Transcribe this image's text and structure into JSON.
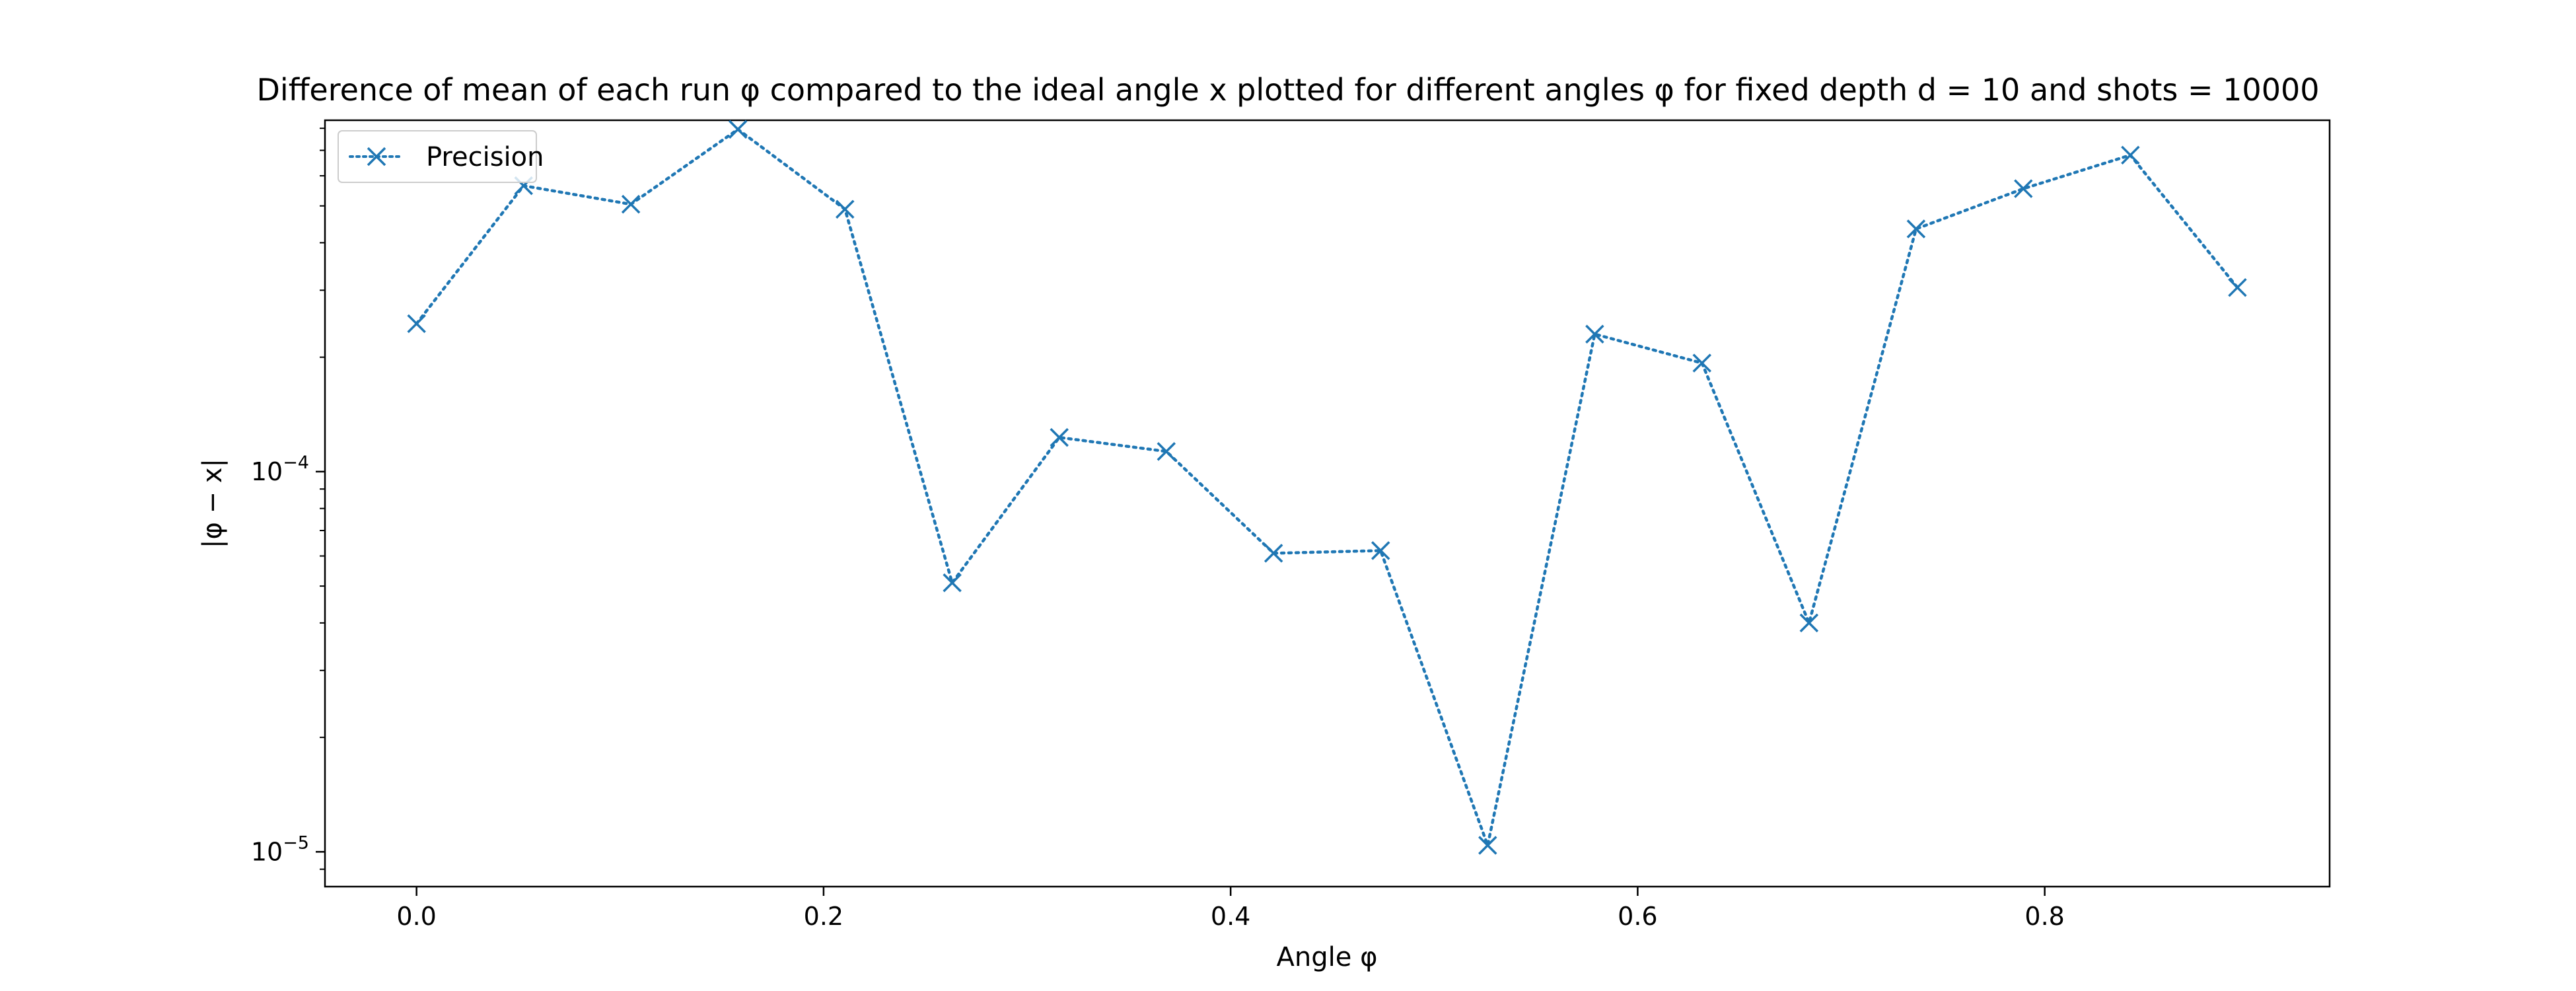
{
  "chart_data": {
    "type": "line",
    "title": "Difference of mean of each run φ compared to the ideal angle x plotted for different angles φ for fixed depth d = 10 and shots = 10000",
    "xlabel": "Angle φ",
    "ylabel": "|φ − x|",
    "xlim": [
      -0.045,
      0.94
    ],
    "ylim": [
      8.1e-06,
      0.00084
    ],
    "yscale": "log",
    "grid": false,
    "legend_position": "top-left",
    "x_ticks": [
      {
        "value": 0.0,
        "label": "0.0"
      },
      {
        "value": 0.2,
        "label": "0.2"
      },
      {
        "value": 0.4,
        "label": "0.4"
      },
      {
        "value": 0.6,
        "label": "0.6"
      },
      {
        "value": 0.8,
        "label": "0.8"
      }
    ],
    "y_ticks": [
      {
        "value": 1e-05,
        "base": "10",
        "exp": "−5"
      },
      {
        "value": 0.0001,
        "base": "10",
        "exp": "−4"
      }
    ],
    "series": [
      {
        "name": "Precision",
        "color": "#1f77b4",
        "line_style": "dotted",
        "marker": "x",
        "x": [
          0.0,
          0.0526,
          0.1053,
          0.1579,
          0.2105,
          0.2632,
          0.3158,
          0.3684,
          0.4211,
          0.4737,
          0.5263,
          0.5789,
          0.6316,
          0.6842,
          0.7368,
          0.7895,
          0.8421,
          0.8947
        ],
        "y": [
          0.000245,
          0.000565,
          0.000505,
          0.000795,
          0.00049,
          5.1e-05,
          0.000123,
          0.000113,
          6.1e-05,
          6.2e-05,
          1.04e-05,
          0.00023,
          0.000193,
          4e-05,
          0.000435,
          0.000555,
          0.00068,
          0.000305
        ]
      }
    ]
  }
}
